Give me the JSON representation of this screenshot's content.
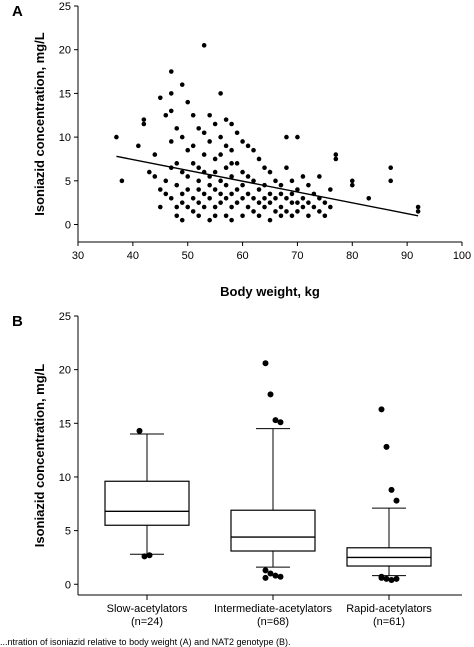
{
  "chart_data": [
    {
      "panel_label": "A",
      "type": "scatter",
      "xlabel": "Body weight, kg",
      "ylabel": "Isoniazid concentration, mg/L",
      "xlim": [
        30,
        100
      ],
      "ylim": [
        -2,
        25
      ],
      "xticks": [
        30,
        40,
        50,
        60,
        70,
        80,
        90,
        100
      ],
      "xtick_labels": [
        "30",
        "40",
        "50",
        "60",
        "70",
        "80",
        "90",
        "100"
      ],
      "yticks": [
        0,
        5,
        10,
        15,
        20,
        25
      ],
      "ytick_labels": [
        "0",
        "5",
        "10",
        "15",
        "20",
        "25"
      ],
      "regression_line": {
        "x": [
          37,
          92
        ],
        "y": [
          7.8,
          1.0
        ]
      },
      "points": [
        [
          37,
          10.0
        ],
        [
          38,
          5.0
        ],
        [
          41,
          9.0
        ],
        [
          42,
          12.0
        ],
        [
          42,
          11.5
        ],
        [
          43,
          6.0
        ],
        [
          44,
          5.5
        ],
        [
          44,
          8.0
        ],
        [
          45,
          14.5
        ],
        [
          45,
          4.0
        ],
        [
          45,
          2.0
        ],
        [
          46,
          12.5
        ],
        [
          46,
          3.5
        ],
        [
          46,
          5.0
        ],
        [
          47,
          17.5
        ],
        [
          47,
          15.0
        ],
        [
          47,
          13.0
        ],
        [
          47,
          9.5
        ],
        [
          47,
          6.5
        ],
        [
          47,
          3.0
        ],
        [
          48,
          11.0
        ],
        [
          48,
          7.0
        ],
        [
          48,
          4.5
        ],
        [
          48,
          2.0
        ],
        [
          48,
          1.0
        ],
        [
          49,
          16.0
        ],
        [
          49,
          10.0
        ],
        [
          49,
          6.0
        ],
        [
          49,
          3.5
        ],
        [
          49,
          2.5
        ],
        [
          49,
          0.5
        ],
        [
          50,
          14.0
        ],
        [
          50,
          8.5
        ],
        [
          50,
          5.5
        ],
        [
          50,
          4.0
        ],
        [
          50,
          2.0
        ],
        [
          51,
          12.5
        ],
        [
          51,
          9.0
        ],
        [
          51,
          7.0
        ],
        [
          51,
          3.0
        ],
        [
          51,
          1.5
        ],
        [
          52,
          11.0
        ],
        [
          52,
          6.5
        ],
        [
          52,
          5.0
        ],
        [
          52,
          4.0
        ],
        [
          52,
          2.5
        ],
        [
          52,
          1.0
        ],
        [
          53,
          20.5
        ],
        [
          53,
          10.5
        ],
        [
          53,
          8.0
        ],
        [
          53,
          6.0
        ],
        [
          53,
          3.5
        ],
        [
          53,
          2.0
        ],
        [
          54,
          12.5
        ],
        [
          54,
          9.5
        ],
        [
          54,
          5.5
        ],
        [
          54,
          4.5
        ],
        [
          54,
          3.0
        ],
        [
          54,
          0.5
        ],
        [
          55,
          11.5
        ],
        [
          55,
          7.5
        ],
        [
          55,
          6.0
        ],
        [
          55,
          4.0
        ],
        [
          55,
          2.0
        ],
        [
          55,
          1.0
        ],
        [
          56,
          15.0
        ],
        [
          56,
          10.0
        ],
        [
          56,
          8.0
        ],
        [
          56,
          5.0
        ],
        [
          56,
          3.5
        ],
        [
          56,
          2.5
        ],
        [
          57,
          12.0
        ],
        [
          57,
          9.0
        ],
        [
          57,
          6.5
        ],
        [
          57,
          4.5
        ],
        [
          57,
          3.0
        ],
        [
          57,
          1.0
        ],
        [
          58,
          11.5
        ],
        [
          58,
          8.5
        ],
        [
          58,
          7.0
        ],
        [
          58,
          5.5
        ],
        [
          58,
          3.5
        ],
        [
          58,
          2.0
        ],
        [
          58,
          0.5
        ],
        [
          59,
          10.5
        ],
        [
          59,
          7.0
        ],
        [
          59,
          4.0
        ],
        [
          59,
          2.5
        ],
        [
          60,
          9.5
        ],
        [
          60,
          6.0
        ],
        [
          60,
          4.5
        ],
        [
          60,
          3.0
        ],
        [
          60,
          1.0
        ],
        [
          61,
          9.0
        ],
        [
          61,
          5.5
        ],
        [
          61,
          3.5
        ],
        [
          61,
          2.0
        ],
        [
          62,
          8.5
        ],
        [
          62,
          5.0
        ],
        [
          62,
          3.0
        ],
        [
          62,
          1.5
        ],
        [
          63,
          7.5
        ],
        [
          63,
          4.0
        ],
        [
          63,
          2.5
        ],
        [
          63,
          1.0
        ],
        [
          64,
          6.5
        ],
        [
          64,
          4.5
        ],
        [
          64,
          3.0
        ],
        [
          64,
          2.0
        ],
        [
          65,
          6.0
        ],
        [
          65,
          3.5
        ],
        [
          65,
          2.5
        ],
        [
          65,
          0.5
        ],
        [
          66,
          5.0
        ],
        [
          66,
          3.0
        ],
        [
          66,
          1.5
        ],
        [
          67,
          4.5
        ],
        [
          67,
          3.5
        ],
        [
          67,
          2.0
        ],
        [
          67,
          1.0
        ],
        [
          68,
          10.0
        ],
        [
          68,
          6.5
        ],
        [
          68,
          3.0
        ],
        [
          68,
          1.5
        ],
        [
          69,
          5.0
        ],
        [
          69,
          3.5
        ],
        [
          69,
          2.5
        ],
        [
          69,
          1.0
        ],
        [
          70,
          10.0
        ],
        [
          70,
          4.0
        ],
        [
          70,
          2.5
        ],
        [
          70,
          1.5
        ],
        [
          71,
          5.5
        ],
        [
          71,
          3.0
        ],
        [
          71,
          2.0
        ],
        [
          72,
          4.5
        ],
        [
          72,
          2.5
        ],
        [
          72,
          1.0
        ],
        [
          73,
          3.5
        ],
        [
          73,
          2.0
        ],
        [
          74,
          5.5
        ],
        [
          74,
          3.0
        ],
        [
          74,
          1.5
        ],
        [
          75,
          2.5
        ],
        [
          75,
          1.0
        ],
        [
          76,
          4.0
        ],
        [
          76,
          2.0
        ],
        [
          77,
          8.0
        ],
        [
          77,
          7.5
        ],
        [
          80,
          5.0
        ],
        [
          80,
          4.5
        ],
        [
          83,
          3.0
        ],
        [
          87,
          6.5
        ],
        [
          87,
          5.0
        ],
        [
          92,
          2.0
        ],
        [
          92,
          1.5
        ]
      ]
    },
    {
      "panel_label": "B",
      "type": "box",
      "ylabel": "Isoniazid concentration, mg/L",
      "ylim": [
        -1,
        25
      ],
      "yticks": [
        0,
        5,
        10,
        15,
        20,
        25
      ],
      "ytick_labels": [
        "0",
        "5",
        "10",
        "15",
        "20",
        "25"
      ],
      "categories": [
        {
          "name": "Slow-acetylators",
          "n_label": "(n=24)",
          "whisker_low": 2.8,
          "q1": 5.5,
          "median": 6.8,
          "q3": 9.6,
          "whisker_high": 14.0,
          "outliers": [
            14.3,
            2.6,
            2.7
          ]
        },
        {
          "name": "Intermediate-acetylators",
          "n_label": "(n=68)",
          "whisker_low": 1.6,
          "q1": 3.1,
          "median": 4.4,
          "q3": 6.9,
          "whisker_high": 14.5,
          "outliers": [
            20.6,
            17.7,
            15.3,
            15.1,
            1.3,
            1.0,
            0.8,
            0.7,
            0.6
          ]
        },
        {
          "name": "Rapid-acetylators",
          "n_label": "(n=61)",
          "whisker_low": 0.8,
          "q1": 1.7,
          "median": 2.5,
          "q3": 3.4,
          "whisker_high": 7.1,
          "outliers": [
            16.3,
            12.8,
            8.8,
            7.8,
            0.7,
            0.5,
            0.4,
            0.5,
            0.6
          ]
        }
      ]
    }
  ],
  "caption": "...ntration of isoniazid relative to body weight (A) and NAT2 genotype (B)."
}
